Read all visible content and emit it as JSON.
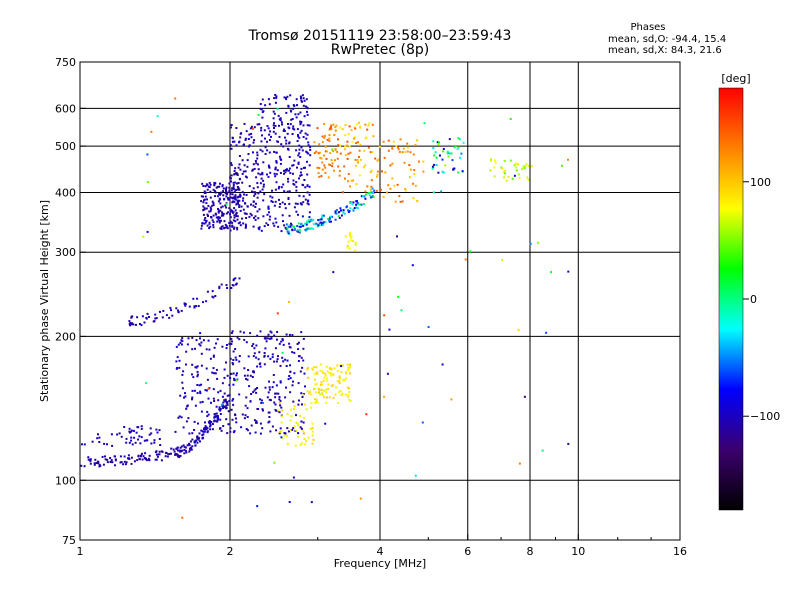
{
  "header": {
    "title_line1": "Tromsø 20151119 23:58:00–23:59:43",
    "title_line2": "RwPretec (8p)"
  },
  "stats": {
    "heading": "Phases",
    "line_o": "mean, sd,O: -94.4, 15.4",
    "line_x": "mean, sd,X:  84.3, 21.6"
  },
  "colorbar": {
    "unit_label": "[deg]",
    "range": [
      -180,
      180
    ],
    "ticks": [
      {
        "value": 100,
        "label": "100"
      },
      {
        "value": 0,
        "label": "0"
      },
      {
        "value": -100,
        "label": "−100"
      }
    ],
    "colors": [
      "#000000",
      "#3b006f",
      "#0000ff",
      "#00ffff",
      "#00ff00",
      "#ffff00",
      "#ff8000",
      "#ff0000"
    ]
  },
  "chart_data": {
    "type": "scatter",
    "xlabel": "Frequency [MHz]",
    "ylabel": "Stationary phase Virtual Height [km]",
    "xscale": "log",
    "yscale": "log",
    "xlim": [
      1,
      16
    ],
    "ylim": [
      75,
      750
    ],
    "xticks": [
      {
        "value": 1,
        "label": "1"
      },
      {
        "value": 2,
        "label": "2"
      },
      {
        "value": 4,
        "label": "4"
      },
      {
        "value": 6,
        "label": "6"
      },
      {
        "value": 8,
        "label": "8"
      },
      {
        "value": 10,
        "label": "10"
      },
      {
        "value": 16,
        "label": "16"
      }
    ],
    "yticks": [
      {
        "value": 75,
        "label": "75"
      },
      {
        "value": 100,
        "label": "100"
      },
      {
        "value": 200,
        "label": "200"
      },
      {
        "value": 300,
        "label": "300"
      },
      {
        "value": 400,
        "label": "400"
      },
      {
        "value": 500,
        "label": "500"
      },
      {
        "value": 600,
        "label": "600"
      },
      {
        "value": 750,
        "label": "750"
      }
    ],
    "grid_x": [
      2,
      4,
      6,
      8,
      10
    ],
    "grid_y": [
      100,
      200,
      300,
      400,
      500,
      600
    ],
    "grid": true,
    "color_by": "phase_deg",
    "clusters": [
      {
        "x": [
          1.0,
          1.55
        ],
        "y": [
          109,
          114
        ],
        "phase": [
          -115,
          -100
        ],
        "n": 90,
        "shape": "curve"
      },
      {
        "x": [
          1.55,
          2.0
        ],
        "y": [
          114,
          150
        ],
        "phase": [
          -115,
          -95
        ],
        "n": 120,
        "shape": "curve"
      },
      {
        "x": [
          1.55,
          2.05
        ],
        "y": [
          125,
          200
        ],
        "phase": [
          -115,
          -90
        ],
        "n": 160,
        "shape": "box"
      },
      {
        "x": [
          2.0,
          2.85
        ],
        "y": [
          125,
          205
        ],
        "phase": [
          -115,
          -90
        ],
        "n": 230,
        "shape": "box"
      },
      {
        "x": [
          1.2,
          1.45
        ],
        "y": [
          118,
          130
        ],
        "phase": [
          -110,
          -95
        ],
        "n": 40,
        "shape": "box"
      },
      {
        "x": [
          1.0,
          1.2
        ],
        "y": [
          118,
          125
        ],
        "phase": [
          -110,
          -95
        ],
        "n": 12,
        "shape": "box"
      },
      {
        "x": [
          2.5,
          2.95
        ],
        "y": [
          118,
          145
        ],
        "phase": [
          70,
          100
        ],
        "n": 45,
        "shape": "box"
      },
      {
        "x": [
          2.85,
          3.5
        ],
        "y": [
          145,
          175
        ],
        "phase": [
          70,
          100
        ],
        "n": 110,
        "shape": "box"
      },
      {
        "x": [
          1.25,
          2.1
        ],
        "y": [
          215,
          265
        ],
        "phase": [
          -115,
          -95
        ],
        "n": 70,
        "shape": "curve"
      },
      {
        "x": [
          1.75,
          2.1
        ],
        "y": [
          335,
          420
        ],
        "phase": [
          -115,
          -95
        ],
        "n": 200,
        "shape": "box"
      },
      {
        "x": [
          2.0,
          2.3
        ],
        "y": [
          330,
          560
        ],
        "phase": [
          -115,
          -95
        ],
        "n": 160,
        "shape": "box"
      },
      {
        "x": [
          2.3,
          2.9
        ],
        "y": [
          330,
          640
        ],
        "phase": [
          -110,
          -90
        ],
        "n": 300,
        "shape": "box"
      },
      {
        "x": [
          2.6,
          3.9
        ],
        "y": [
          335,
          400
        ],
        "phase": [
          -105,
          20
        ],
        "n": 140,
        "shape": "curve"
      },
      {
        "x": [
          2.95,
          3.3
        ],
        "y": [
          430,
          560
        ],
        "phase": [
          110,
          150
        ],
        "n": 60,
        "shape": "box"
      },
      {
        "x": [
          3.3,
          3.9
        ],
        "y": [
          400,
          560
        ],
        "phase": [
          80,
          150
        ],
        "n": 70,
        "shape": "box"
      },
      {
        "x": [
          3.9,
          4.9
        ],
        "y": [
          380,
          520
        ],
        "phase": [
          90,
          150
        ],
        "n": 60,
        "shape": "box"
      },
      {
        "x": [
          5.1,
          5.9
        ],
        "y": [
          440,
          520
        ],
        "phase": [
          -110,
          60
        ],
        "n": 45,
        "shape": "box"
      },
      {
        "x": [
          6.6,
          8.1
        ],
        "y": [
          420,
          470
        ],
        "phase": [
          40,
          90
        ],
        "n": 35,
        "shape": "box"
      },
      {
        "x": [
          3.4,
          3.6
        ],
        "y": [
          300,
          330
        ],
        "phase": [
          70,
          90
        ],
        "n": 15,
        "shape": "box"
      },
      {
        "x": [
          1.3,
          10.0
        ],
        "y": [
          80,
          650
        ],
        "phase": [
          -120,
          160
        ],
        "n": 70,
        "shape": "box"
      }
    ]
  }
}
